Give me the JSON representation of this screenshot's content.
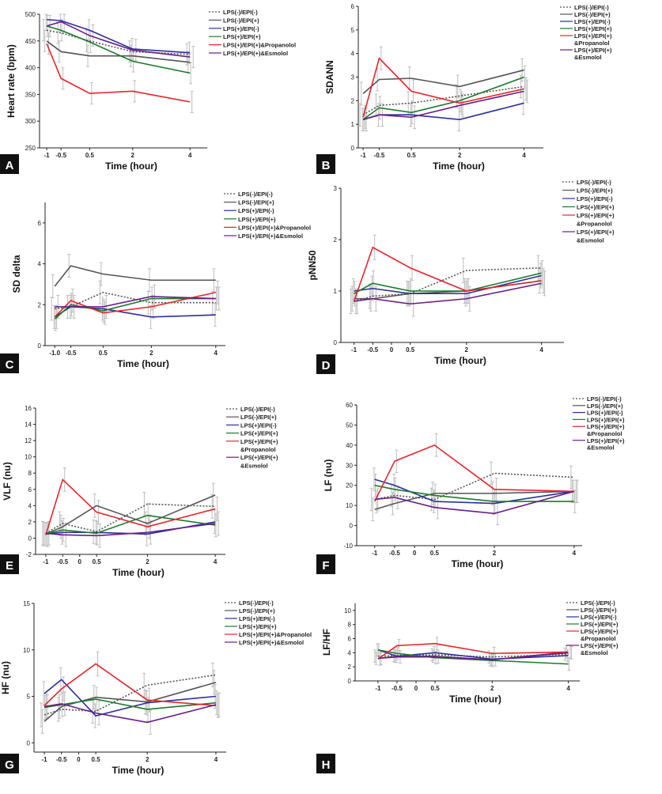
{
  "series_styles": [
    {
      "name": "LPS(-)/EPI(-)",
      "color": "#555555",
      "dash": "2,2"
    },
    {
      "name": "LPS(-)/EPI(+)",
      "color": "#555555",
      "dash": ""
    },
    {
      "name": "LPS(+)/EPI(-)",
      "color": "#2b2f9e",
      "dash": ""
    },
    {
      "name": "LPS(+)/EPI(+)",
      "color": "#1b7a2a",
      "dash": ""
    },
    {
      "name": "LPS(+)/EPI(+)&Propanolol",
      "color": "#e8232a",
      "dash": ""
    },
    {
      "name": "LPS(+)/EPI(+)&Esmolol",
      "color": "#6a1b8a",
      "dash": ""
    }
  ],
  "chart_data": [
    {
      "panel": "A",
      "type": "line",
      "ylabel": "Heart rate (bpm)",
      "xlabel": "Time (hour)",
      "x": [
        -1,
        -0.5,
        0.5,
        2,
        4
      ],
      "x_ticks": [
        "-1",
        "-0.5",
        "0.5",
        "2",
        "4"
      ],
      "ylim": [
        250,
        500
      ],
      "y_ticks": [
        "250",
        "300",
        "350",
        "400",
        "450",
        "500"
      ],
      "series": [
        {
          "name": "LPS(-)/EPI(-)",
          "values": [
            470,
            465,
            450,
            430,
            425
          ]
        },
        {
          "name": "LPS(-)/EPI(+)",
          "values": [
            450,
            430,
            422,
            422,
            410
          ]
        },
        {
          "name": "LPS(+)/EPI(-)",
          "values": [
            490,
            488,
            470,
            435,
            428
          ]
        },
        {
          "name": "LPS(+)/EPI(+)",
          "values": [
            478,
            470,
            448,
            412,
            390
          ]
        },
        {
          "name": "LPS(+)/EPI(+)&Propanolol",
          "values": [
            445,
            380,
            352,
            356,
            336
          ]
        },
        {
          "name": "LPS(+)/EPI(+)&Esmolol",
          "values": [
            478,
            486,
            460,
            433,
            420
          ]
        }
      ]
    },
    {
      "panel": "B",
      "type": "line",
      "ylabel": "SDANN",
      "xlabel": "Time (hour)",
      "x": [
        -1,
        -0.5,
        0.5,
        2,
        4
      ],
      "x_ticks": [
        "-1",
        "-0.5",
        "0.5",
        "2",
        "4"
      ],
      "ylim": [
        0,
        6
      ],
      "y_ticks": [
        "0",
        "1",
        "2",
        "3",
        "4",
        "5",
        "6"
      ],
      "series": [
        {
          "name": "LPS(-)/EPI(-)",
          "values": [
            1.4,
            1.8,
            1.9,
            2.2,
            2.6
          ]
        },
        {
          "name": "LPS(-)/EPI(+)",
          "values": [
            2.3,
            2.9,
            2.95,
            2.6,
            3.3
          ]
        },
        {
          "name": "LPS(+)/EPI(-)",
          "values": [
            1.2,
            1.4,
            1.4,
            1.2,
            1.9
          ]
        },
        {
          "name": "LPS(+)/EPI(+)",
          "values": [
            1.2,
            1.7,
            1.5,
            2.0,
            3.0
          ]
        },
        {
          "name": "LPS(+)/EPI(+)&Propanolol",
          "values": [
            1.3,
            3.8,
            2.4,
            1.9,
            2.5
          ]
        },
        {
          "name": "LPS(+)/EPI(+)&Esmolol",
          "values": [
            1.2,
            1.4,
            1.3,
            1.8,
            2.4
          ]
        }
      ]
    },
    {
      "panel": "C",
      "type": "line",
      "ylabel": "SD delta",
      "xlabel": "Time (hour)",
      "x": [
        -1,
        -0.5,
        0.5,
        2,
        4
      ],
      "x_ticks": [
        "-1.0",
        "-0.5",
        "0.5",
        "2",
        "4"
      ],
      "ylim": [
        0,
        7
      ],
      "y_ticks": [
        "0",
        "2",
        "4",
        "6"
      ],
      "series": [
        {
          "name": "LPS(-)/EPI(-)",
          "values": [
            1.8,
            1.9,
            2.6,
            2.1,
            2.1
          ]
        },
        {
          "name": "LPS(-)/EPI(+)",
          "values": [
            2.9,
            3.9,
            3.5,
            3.2,
            3.2
          ]
        },
        {
          "name": "LPS(+)/EPI(-)",
          "values": [
            1.4,
            1.9,
            1.8,
            1.4,
            1.5
          ]
        },
        {
          "name": "LPS(+)/EPI(+)",
          "values": [
            1.3,
            2.0,
            1.7,
            2.3,
            2.3
          ]
        },
        {
          "name": "LPS(+)/EPI(+)&Propanolol",
          "values": [
            1.4,
            2.2,
            1.6,
            1.9,
            2.6
          ]
        },
        {
          "name": "LPS(+)/EPI(+)&Esmolol",
          "values": [
            1.9,
            1.9,
            1.9,
            2.4,
            2.3
          ]
        }
      ]
    },
    {
      "panel": "D",
      "type": "line",
      "ylabel": "pNN50",
      "xlabel": "Time (hour)",
      "x": [
        -1,
        -0.5,
        0.5,
        2,
        4
      ],
      "x_ticks": [
        "-1",
        "-0.5",
        "0",
        "0.5",
        "2",
        "4"
      ],
      "x_tick_vals": [
        -1,
        -0.5,
        0,
        0.5,
        2,
        4
      ],
      "ylim": [
        0,
        3
      ],
      "y_ticks": [
        "0",
        "1",
        "2",
        "3"
      ],
      "series": [
        {
          "name": "LPS(-)/EPI(-)",
          "values": [
            0.8,
            0.9,
            0.95,
            1.4,
            1.45
          ]
        },
        {
          "name": "LPS(-)/EPI(+)",
          "values": [
            0.85,
            0.85,
            0.95,
            1.0,
            1.2
          ]
        },
        {
          "name": "LPS(+)/EPI(-)",
          "values": [
            1.0,
            1.05,
            0.95,
            0.95,
            1.3
          ]
        },
        {
          "name": "LPS(+)/EPI(+)",
          "values": [
            0.95,
            1.15,
            1.0,
            1.0,
            1.35
          ]
        },
        {
          "name": "LPS(+)/EPI(+)&Propanolol",
          "values": [
            0.8,
            1.85,
            1.45,
            1.0,
            1.2
          ]
        },
        {
          "name": "LPS(+)/EPI(+)&Esmolol",
          "values": [
            0.8,
            0.85,
            0.75,
            0.85,
            1.15
          ]
        }
      ]
    },
    {
      "panel": "E",
      "type": "line",
      "ylabel": "VLF (nu)",
      "xlabel": "Time (hour)",
      "x": [
        -1,
        -0.5,
        0.5,
        2,
        4
      ],
      "x_ticks": [
        "-1",
        "-0.5",
        "0",
        "0.5",
        "2",
        "4"
      ],
      "x_tick_vals": [
        -1,
        -0.5,
        0,
        0.5,
        2,
        4
      ],
      "ylim": [
        -2,
        16
      ],
      "y_ticks": [
        "-2",
        "0",
        "2",
        "4",
        "6",
        "8",
        "10",
        "12",
        "14",
        "16"
      ],
      "series": [
        {
          "name": "LPS(-)/EPI(-)",
          "values": [
            0.6,
            1.8,
            0.8,
            4.2,
            3.9
          ]
        },
        {
          "name": "LPS(-)/EPI(+)",
          "values": [
            0.5,
            1.4,
            4.0,
            1.8,
            5.3
          ]
        },
        {
          "name": "LPS(+)/EPI(-)",
          "values": [
            0.5,
            0.7,
            0.7,
            0.5,
            2.0
          ]
        },
        {
          "name": "LPS(+)/EPI(+)",
          "values": [
            0.5,
            1.0,
            0.6,
            2.8,
            1.6
          ]
        },
        {
          "name": "LPS(+)/EPI(+)&Propanolol",
          "values": [
            0.4,
            7.2,
            3.2,
            1.4,
            3.6
          ]
        },
        {
          "name": "LPS(+)/EPI(+)&Esmolol",
          "values": [
            0.6,
            0.4,
            0.3,
            0.7,
            1.8
          ]
        }
      ]
    },
    {
      "panel": "F",
      "type": "line",
      "ylabel": "LF (nu)",
      "xlabel": "Time (hour)",
      "x": [
        -1,
        -0.5,
        0.5,
        2,
        4
      ],
      "x_ticks": [
        "-1",
        "-0.5",
        "0",
        "0.5",
        "2",
        "4"
      ],
      "x_tick_vals": [
        -1,
        -0.5,
        0,
        0.5,
        2,
        4
      ],
      "ylim": [
        -10,
        60
      ],
      "y_ticks": [
        "-10",
        "0",
        "10",
        "20",
        "30",
        "40",
        "50",
        "60"
      ],
      "series": [
        {
          "name": "LPS(-)/EPI(-)",
          "values": [
            13,
            15,
            13,
            26,
            24
          ]
        },
        {
          "name": "LPS(-)/EPI(+)",
          "values": [
            8,
            11,
            16,
            16,
            17
          ]
        },
        {
          "name": "LPS(+)/EPI(-)",
          "values": [
            23,
            20,
            12,
            11,
            17
          ]
        },
        {
          "name": "LPS(+)/EPI(+)",
          "values": [
            20,
            18,
            15,
            12,
            12
          ]
        },
        {
          "name": "LPS(+)/EPI(+)&Propanolol",
          "values": [
            12,
            32,
            40,
            18,
            17
          ]
        },
        {
          "name": "LPS(+)/EPI(+)&Esmolol",
          "values": [
            13,
            14,
            9,
            6,
            17
          ]
        }
      ]
    },
    {
      "panel": "G",
      "type": "line",
      "ylabel": "HF (nu)",
      "xlabel": "Time (hour)",
      "x": [
        -1,
        -0.5,
        0.5,
        2,
        4
      ],
      "x_ticks": [
        "-1",
        "-0.5",
        "0",
        "0.5",
        "2",
        "4"
      ],
      "x_tick_vals": [
        -1,
        -0.5,
        0,
        0.5,
        2,
        4
      ],
      "ylim": [
        -1,
        15
      ],
      "y_ticks": [
        "0",
        "5",
        "10",
        "15"
      ],
      "series": [
        {
          "name": "LPS(-)/EPI(-)",
          "values": [
            3.0,
            3.6,
            3.4,
            6.2,
            7.3
          ]
        },
        {
          "name": "LPS(-)/EPI(+)",
          "values": [
            2.3,
            3.9,
            4.9,
            4.4,
            6.5
          ]
        },
        {
          "name": "LPS(+)/EPI(-)",
          "values": [
            5.3,
            6.8,
            2.9,
            4.3,
            5.0
          ]
        },
        {
          "name": "LPS(+)/EPI(+)",
          "values": [
            3.8,
            4.1,
            4.7,
            3.6,
            4.3
          ]
        },
        {
          "name": "LPS(+)/EPI(+)&Propanolol",
          "values": [
            4.0,
            5.8,
            8.5,
            4.6,
            4.0
          ]
        },
        {
          "name": "LPS(+)/EPI(+)&Esmolol",
          "values": [
            3.9,
            4.2,
            3.2,
            2.2,
            4.1
          ]
        }
      ]
    },
    {
      "panel": "H",
      "type": "line",
      "ylabel": "LF/HF",
      "xlabel": "Time (hour)",
      "x": [
        -1,
        -0.5,
        0.5,
        2,
        4
      ],
      "x_ticks": [
        "-1",
        "-0.5",
        "0",
        "0.5",
        "2",
        "4"
      ],
      "x_tick_vals": [
        -1,
        -0.5,
        0,
        0.5,
        2,
        4
      ],
      "ylim": [
        0,
        11
      ],
      "y_ticks": [
        "0",
        "2",
        "4",
        "6",
        "8",
        "10"
      ],
      "series": [
        {
          "name": "LPS(-)/EPI(-)",
          "values": [
            3.5,
            3.6,
            3.7,
            3.4,
            3.8
          ]
        },
        {
          "name": "LPS(-)/EPI(+)",
          "values": [
            3.2,
            3.5,
            3.5,
            3.0,
            4.1
          ]
        },
        {
          "name": "LPS(+)/EPI(-)",
          "values": [
            4.4,
            3.5,
            4.0,
            3.1,
            3.6
          ]
        },
        {
          "name": "LPS(+)/EPI(+)",
          "values": [
            4.4,
            3.9,
            3.3,
            2.9,
            2.4
          ]
        },
        {
          "name": "LPS(+)/EPI(+)&Propanolol",
          "values": [
            3.1,
            5.0,
            5.3,
            3.9,
            4.1
          ]
        },
        {
          "name": "LPS(+)/EPI(+)&Esmolol",
          "values": [
            3.2,
            3.4,
            3.4,
            3.0,
            4.0
          ]
        }
      ]
    }
  ]
}
